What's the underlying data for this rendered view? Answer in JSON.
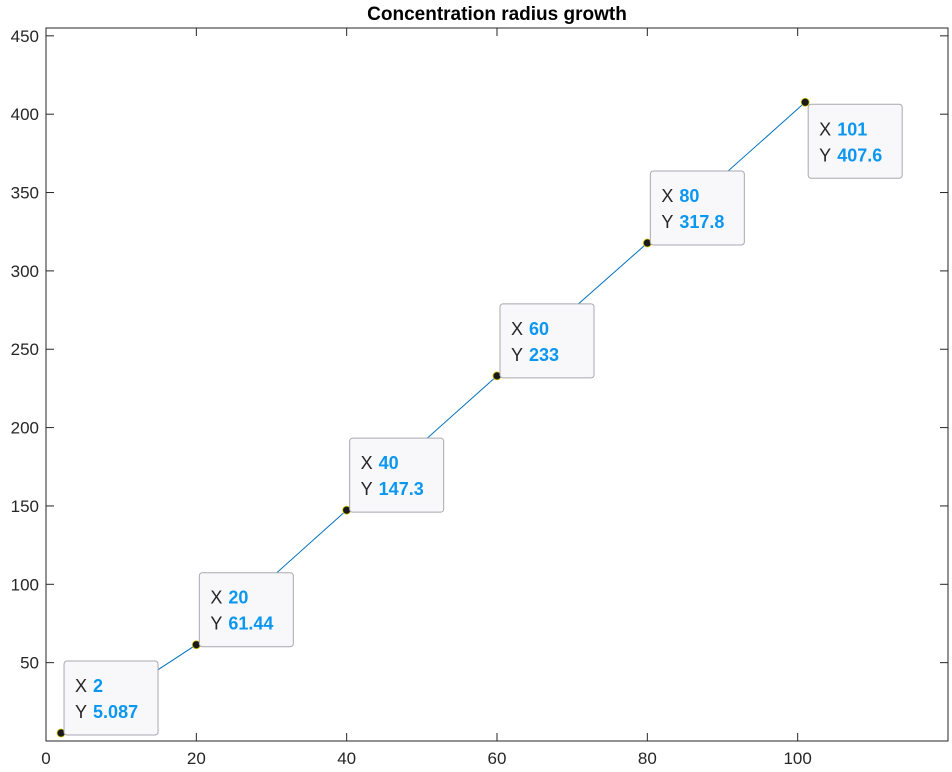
{
  "chart_data": {
    "type": "line",
    "title": "Concentration radius growth",
    "xlabel": "",
    "ylabel": "",
    "xlim": [
      0,
      120
    ],
    "ylim": [
      0,
      455
    ],
    "xticks": [
      0,
      20,
      40,
      60,
      80,
      100
    ],
    "yticks": [
      50,
      100,
      150,
      200,
      250,
      300,
      350,
      400,
      450
    ],
    "grid": false,
    "line_color": "#0072bd",
    "marker_color": "#1a1a1a",
    "datatip_key_color": "#262626",
    "datatip_value_color": "#0b97f0",
    "series": [
      {
        "x": [
          2,
          20,
          40,
          60,
          80,
          101
        ],
        "y": [
          5.087,
          61.44,
          147.3,
          233,
          317.8,
          407.6
        ]
      }
    ],
    "datatips": [
      {
        "x_label": "X",
        "x_value": "2",
        "y_label": "Y",
        "y_value": "5.087"
      },
      {
        "x_label": "X",
        "x_value": "20",
        "y_label": "Y",
        "y_value": "61.44"
      },
      {
        "x_label": "X",
        "x_value": "40",
        "y_label": "Y",
        "y_value": "147.3"
      },
      {
        "x_label": "X",
        "x_value": "60",
        "y_label": "Y",
        "y_value": "233"
      },
      {
        "x_label": "X",
        "x_value": "80",
        "y_label": "Y",
        "y_value": "317.8"
      },
      {
        "x_label": "X",
        "x_value": "101",
        "y_label": "Y",
        "y_value": "407.6"
      }
    ]
  }
}
